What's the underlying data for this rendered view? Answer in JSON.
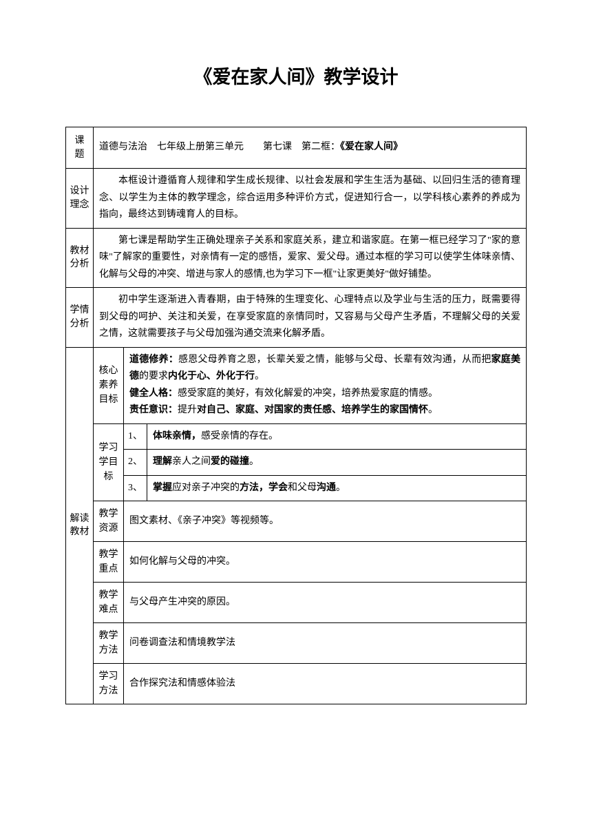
{
  "title": "《爱在家人间》教学设计",
  "topic": {
    "label": "课题",
    "text_parts": [
      "道德与法治　七年级上册第三单元　　第七课　第二框：",
      "《爱在家人间》"
    ]
  },
  "design": {
    "label": "设计理念",
    "content": "本框设计遵循育人规律和学生成长规律、以社会发展和学生生活为基础、以回归生活的德育理念、以学生为主体的教学理念，综合运用多种评价方式，促进知行合一，以学科核心素养的养成为指向，最终达到铸魂育人的目标。"
  },
  "material": {
    "label": "教材分析",
    "content": "第七课是帮助学生正确处理亲子关系和家庭关系，建立和谐家庭。在第一框已经学习了\"家的意味\"了解家的重要性，对亲情有一定的感悟，爱家、爱父母。通过本框的学习可以使学生体味亲情、化解与父母的冲突、增进与家人的感情,也为学习下一框\"让家更美好\"做好铺垫。"
  },
  "situation": {
    "label": "学情分析",
    "content": "初中学生逐渐进入青春期，由于特殊的生理变化、心理特点以及学业与生活的压力，既需要得到父母的呵护、关注和关爱，在享受家庭的亲情同时，又容易与父母产生矛盾，不理解父母的关爱之情，这就需要孩子与父母加强沟通交流来化解矛盾。"
  },
  "interpret": {
    "label": "解读教材",
    "core": {
      "label": "核心素养目标",
      "lines": [
        {
          "prefix": "道德修养：",
          "text": "感恩父母养育之恩，长辈关爱之情，能够与父母、长辈有效沟通，从而把",
          "bold2": "家庭美德",
          "text2": "的要求",
          "bold3": "内化于心、外化于行",
          "text3": "。"
        },
        {
          "prefix": "健全人格：",
          "text": "感受家庭的美好，有效化解爱的冲突，培养热爱家庭的情感。"
        },
        {
          "prefix": "责任意识：",
          "text": "提升",
          "bold2": "对自己、家庭、对国家的责任感、培养学生的家国情怀",
          "text2": "。"
        }
      ]
    },
    "goals": {
      "label": "学习学目标",
      "items": [
        {
          "num": "1、",
          "parts": [
            "体味亲情，",
            "感受亲情的存在。"
          ]
        },
        {
          "num": "2、",
          "parts": [
            "理解",
            "亲人之间",
            "爱的碰撞",
            "。"
          ]
        },
        {
          "num": "3、",
          "parts": [
            "掌握",
            "应对亲子冲突的",
            "方法，学会",
            "和父母",
            "沟通",
            "。"
          ]
        }
      ]
    },
    "resource": {
      "label": "教学资源",
      "content": "图文素材、《亲子冲突》等视频等。"
    },
    "focus": {
      "label": "教学重点",
      "content": "如何化解与父母的冲突。"
    },
    "difficulty": {
      "label": "教学难点",
      "content": "与父母产生冲突的原因。"
    },
    "teach_method": {
      "label": "教学方法",
      "content": "问卷调查法和情境教学法"
    },
    "learn_method": {
      "label": "学习方法",
      "content": "合作探究法和情感体验法"
    }
  }
}
